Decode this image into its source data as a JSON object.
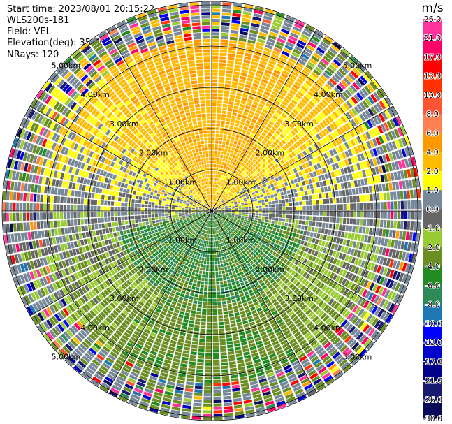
{
  "info": {
    "start_time": "Start time: 2023/08/01 20:15:22",
    "device": "WLS200s-181",
    "field": "Field: VEL",
    "elevation": "Elevation(deg): 35.30",
    "nrays": "NRays: 120"
  },
  "chart_data": {
    "type": "heatmap",
    "projection": "polar-ppi",
    "field": "VEL",
    "n_rays": 120,
    "ring_labels": [
      "1.00km",
      "2.00km",
      "3.00km",
      "4.00km",
      "5.00km"
    ],
    "ring_label_values_km": [
      1,
      2,
      3,
      4,
      5
    ],
    "colorbar": {
      "unit": "m/s",
      "ticks": [
        "26.0",
        "21.0",
        "17.0",
        "13.0",
        "10.0",
        "8.0",
        "6.0",
        "4.0",
        "2.0",
        "1.0",
        "0.0",
        "-1.0",
        "-2.0",
        "-4.0",
        "-6.0",
        "-8.0",
        "-10.0",
        "-13.0",
        "-17.0",
        "-21.0",
        "-26.0",
        "-30.0"
      ],
      "colors": [
        "#ff3399",
        "#ff0066",
        "#ff0000",
        "#ff3300",
        "#ff5533",
        "#ff7f50",
        "#ff9900",
        "#ffbb00",
        "#ffff00",
        "#778899",
        "#666666",
        "#99cc33",
        "#6b8e23",
        "#228b22",
        "#2e8b57",
        "#1f78b4",
        "#0000ff",
        "#0000cd",
        "#00008b",
        "#191970",
        "#0a0a5a"
      ]
    },
    "grid": true
  }
}
